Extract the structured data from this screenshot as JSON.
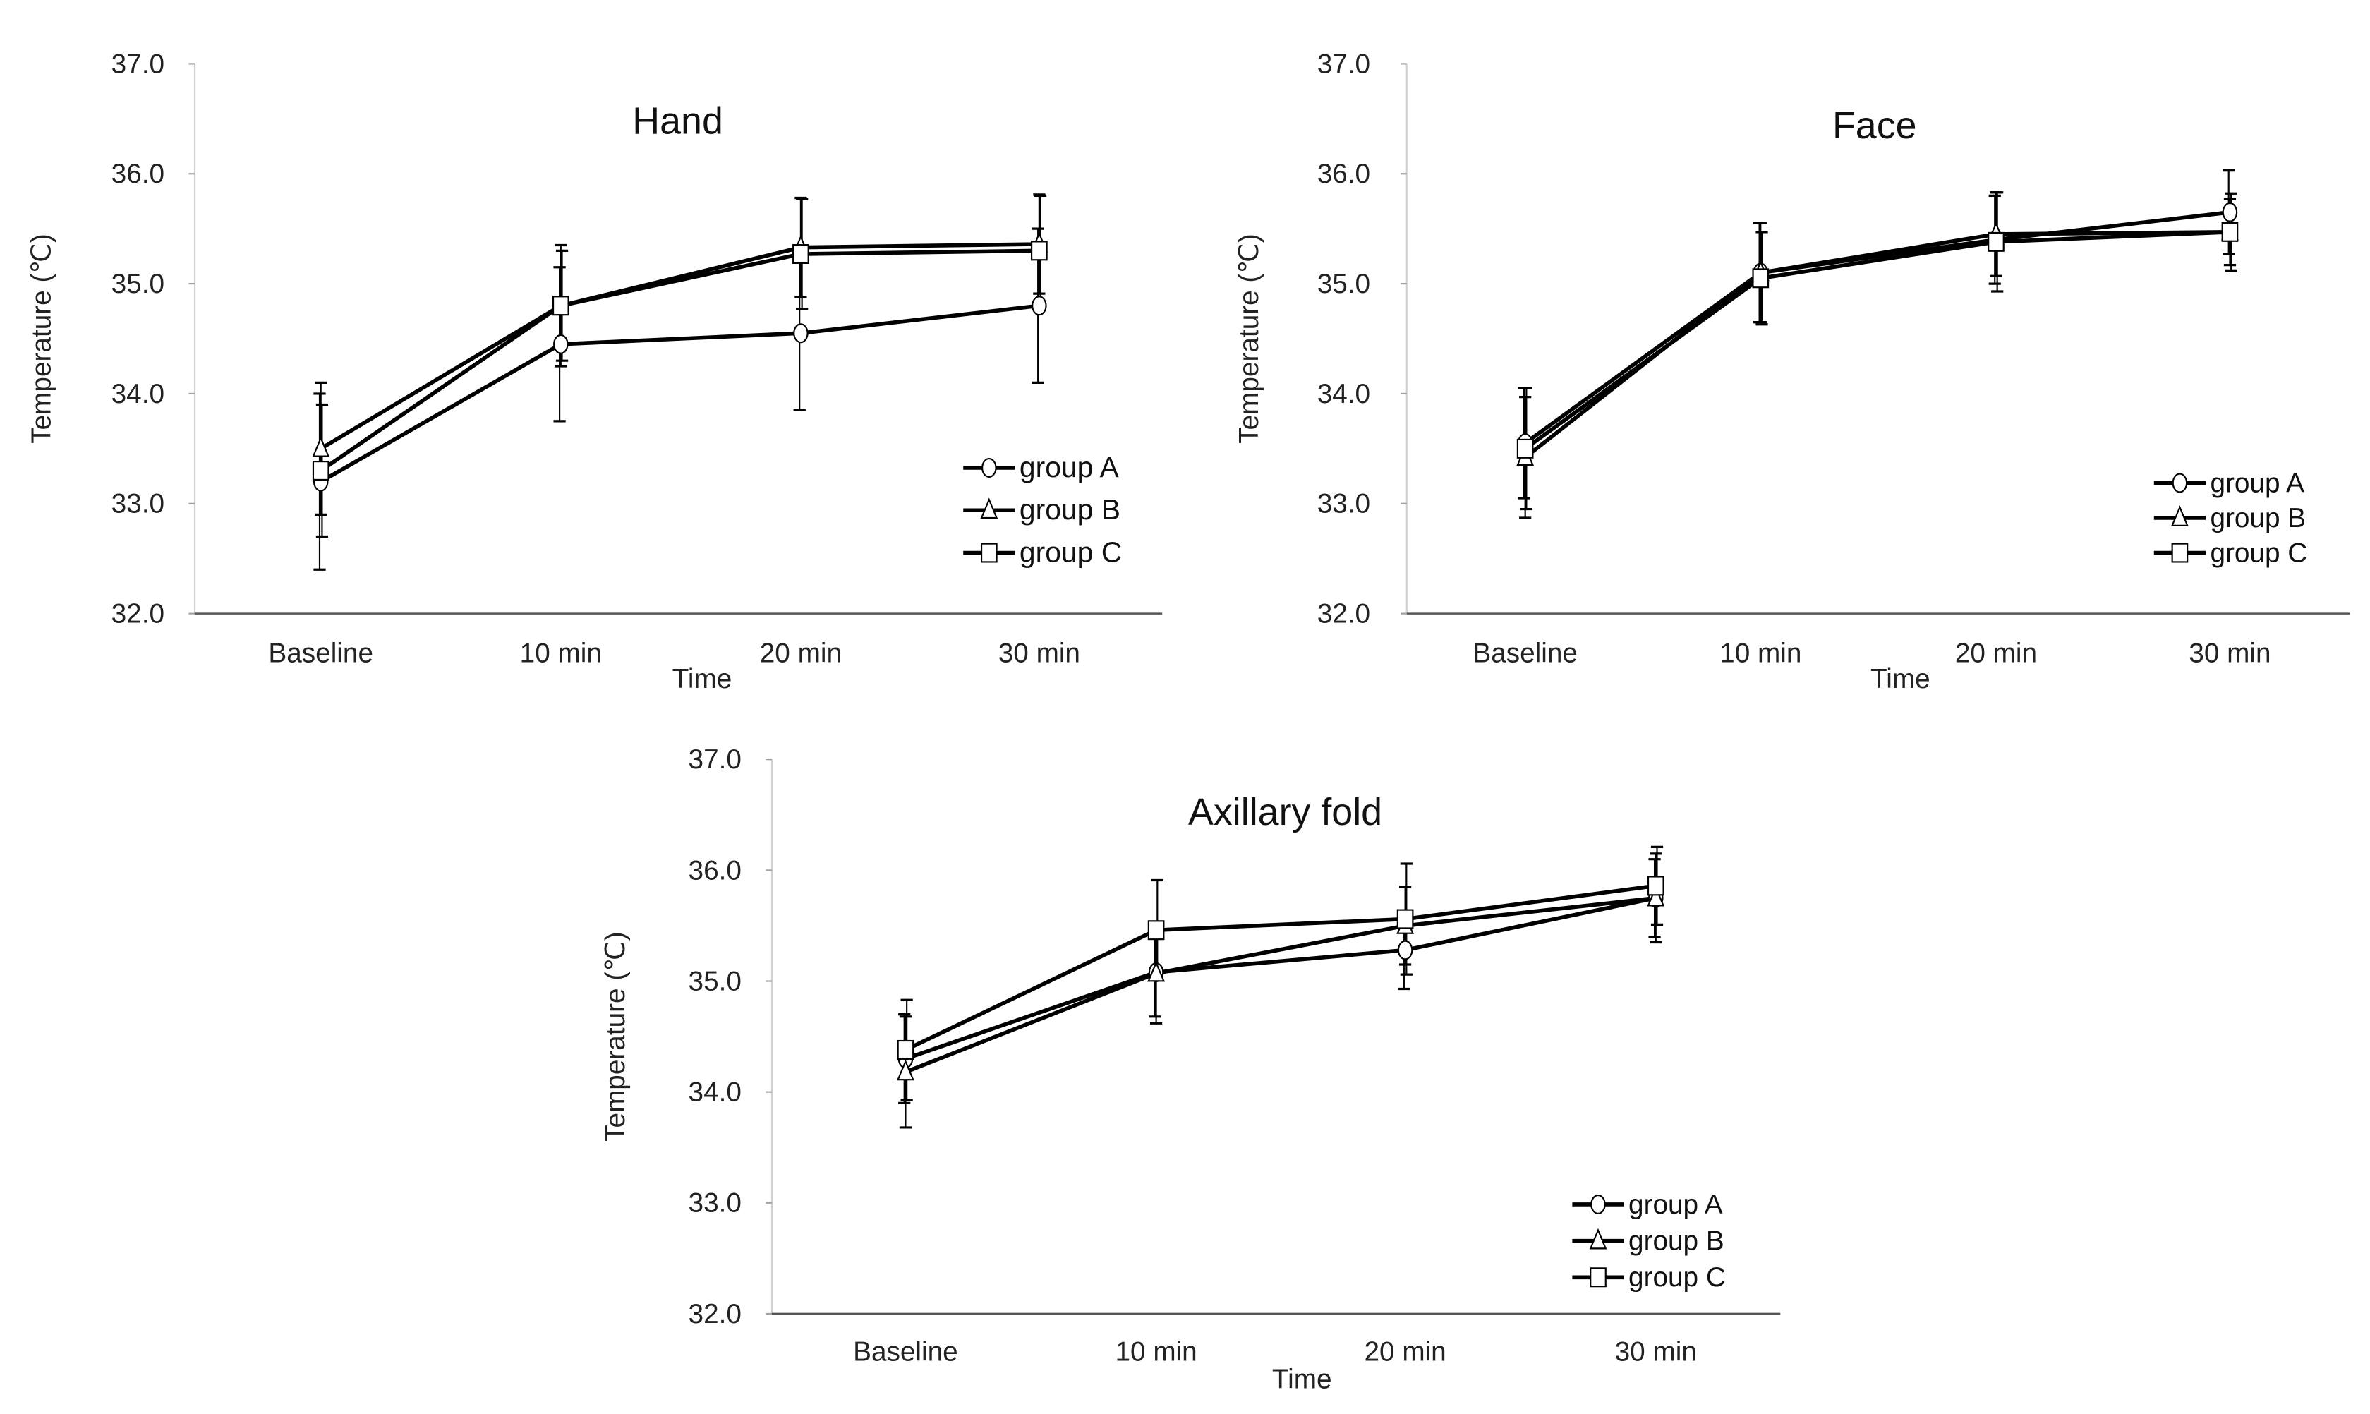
{
  "chart_data": [
    {
      "type": "line",
      "title": "Hand",
      "xlabel": "Time",
      "ylabel": "Temperature (℃)",
      "categories": [
        "Baseline",
        "10 min",
        "20 min",
        "30 min"
      ],
      "ylim": [
        32.0,
        37.0
      ],
      "yticks": [
        "32.0",
        "33.0",
        "34.0",
        "35.0",
        "36.0",
        "37.0"
      ],
      "grid": false,
      "legend_position": "bottom-right",
      "series": [
        {
          "name": "group A",
          "marker": "circle",
          "values": [
            33.2,
            34.45,
            34.55,
            34.8
          ],
          "error": [
            0.8,
            0.7,
            0.7,
            0.7
          ]
        },
        {
          "name": "group B",
          "marker": "triangle",
          "values": [
            33.5,
            34.8,
            35.33,
            35.36
          ],
          "error": [
            0.6,
            0.55,
            0.45,
            0.45
          ]
        },
        {
          "name": "group C",
          "marker": "square",
          "values": [
            33.3,
            34.8,
            35.27,
            35.3
          ],
          "error": [
            0.6,
            0.5,
            0.5,
            0.5
          ]
        }
      ]
    },
    {
      "type": "line",
      "title": "Face",
      "xlabel": "Time",
      "ylabel": "Temperature (℃)",
      "categories": [
        "Baseline",
        "10 min",
        "20 min",
        "30 min"
      ],
      "ylim": [
        32.0,
        37.0
      ],
      "yticks": [
        "32.0",
        "33.0",
        "34.0",
        "35.0",
        "36.0",
        "37.0"
      ],
      "grid": false,
      "legend_position": "bottom-right",
      "series": [
        {
          "name": "group A",
          "marker": "circle",
          "values": [
            33.55,
            35.1,
            35.4,
            35.65
          ],
          "error": [
            0.5,
            0.45,
            0.4,
            0.38
          ]
        },
        {
          "name": "group B",
          "marker": "triangle",
          "values": [
            33.42,
            35.1,
            35.45,
            35.47
          ],
          "error": [
            0.55,
            0.45,
            0.38,
            0.3
          ]
        },
        {
          "name": "group C",
          "marker": "square",
          "values": [
            33.5,
            35.05,
            35.38,
            35.47
          ],
          "error": [
            0.55,
            0.42,
            0.45,
            0.35
          ]
        }
      ]
    },
    {
      "type": "line",
      "title": "Axillary fold",
      "xlabel": "Time",
      "ylabel": "Temperature (℃)",
      "categories": [
        "Baseline",
        "10 min",
        "20 min",
        "30 min"
      ],
      "ylim": [
        32.0,
        37.0
      ],
      "yticks": [
        "32.0",
        "33.0",
        "34.0",
        "35.0",
        "36.0",
        "37.0"
      ],
      "grid": false,
      "legend_position": "bottom-right",
      "series": [
        {
          "name": "group A",
          "marker": "circle",
          "values": [
            34.3,
            35.08,
            35.28,
            35.75
          ],
          "error": [
            0.4,
            0.4,
            0.35,
            0.35
          ]
        },
        {
          "name": "group B",
          "marker": "triangle",
          "values": [
            34.18,
            35.07,
            35.5,
            35.75
          ],
          "error": [
            0.5,
            0.45,
            0.35,
            0.4
          ]
        },
        {
          "name": "group C",
          "marker": "square",
          "values": [
            34.38,
            35.46,
            35.56,
            35.86
          ],
          "error": [
            0.45,
            0.45,
            0.5,
            0.35
          ]
        }
      ]
    }
  ],
  "colors": {
    "line": "#000000",
    "axis": "#a0a0a0",
    "text": "#222222"
  }
}
